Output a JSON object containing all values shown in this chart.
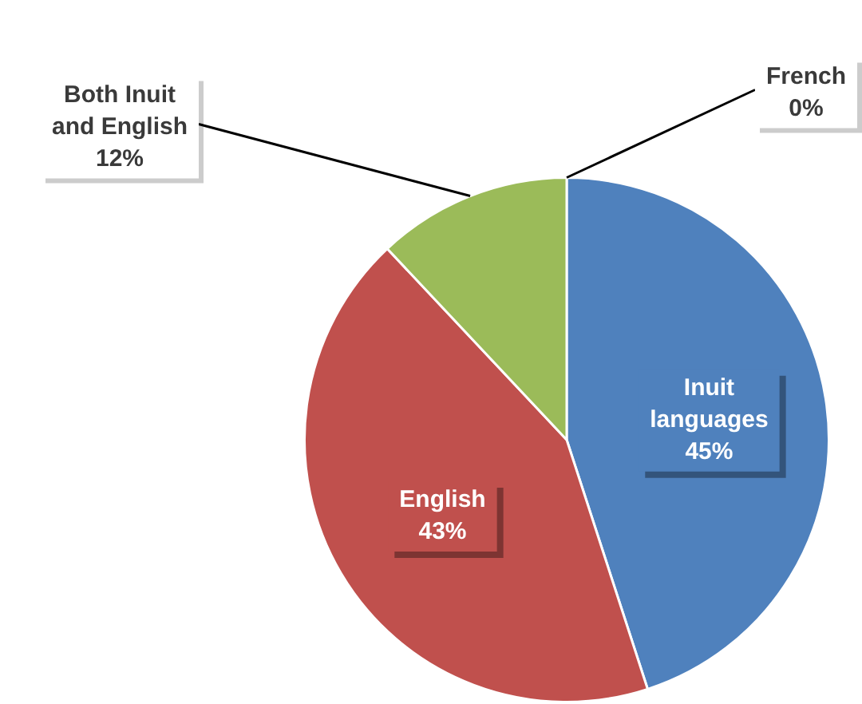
{
  "chart_data": {
    "type": "pie",
    "categories": [
      "Inuit languages",
      "English",
      "Both Inuit and English",
      "French"
    ],
    "values": [
      45,
      43,
      12,
      0
    ],
    "colors": [
      "#4f81bd",
      "#c0504d",
      "#9bbb59",
      "#8064a2"
    ],
    "value_labels": [
      "45%",
      "43%",
      "12%",
      "0%"
    ],
    "legend": false
  }
}
